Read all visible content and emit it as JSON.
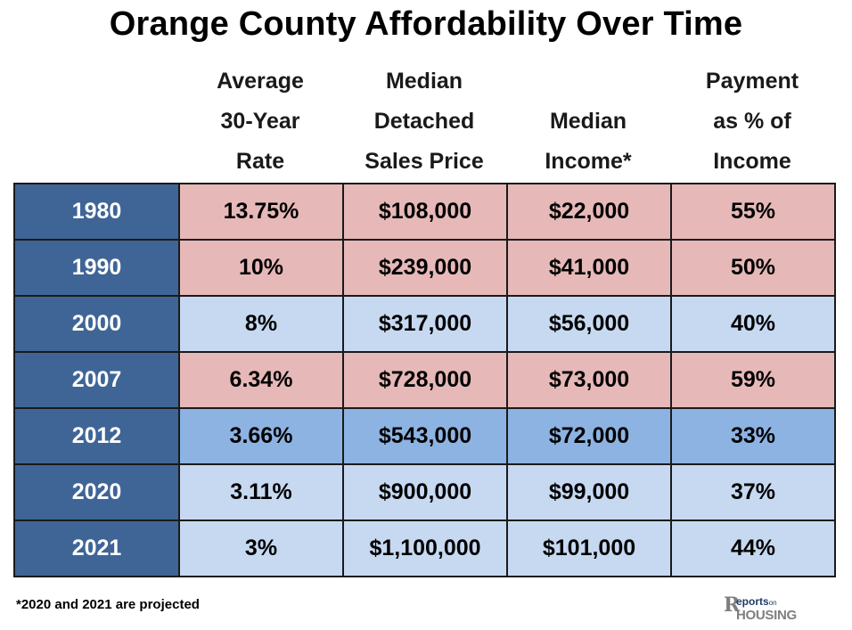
{
  "title": "Orange County Affordability Over Time",
  "headers": {
    "rate": [
      "Average",
      "30-Year",
      "Rate"
    ],
    "price": [
      "Median",
      "Detached",
      "Sales Price"
    ],
    "income": [
      "Median",
      "Income*"
    ],
    "payment": [
      "Payment",
      "as % of",
      "Income"
    ]
  },
  "colors": {
    "year_cell": "#3f6597",
    "pink_row": "#e6b9b8",
    "light_blue_row": "#c6d9f1",
    "mid_blue_row": "#8db3e2"
  },
  "rows": [
    {
      "year": "1980",
      "rate": "13.75%",
      "price": "$108,000",
      "income": "$22,000",
      "payment": "55%",
      "tone": "pink"
    },
    {
      "year": "1990",
      "rate": "10%",
      "price": "$239,000",
      "income": "$41,000",
      "payment": "50%",
      "tone": "pink"
    },
    {
      "year": "2000",
      "rate": "8%",
      "price": "$317,000",
      "income": "$56,000",
      "payment": "40%",
      "tone": "light"
    },
    {
      "year": "2007",
      "rate": "6.34%",
      "price": "$728,000",
      "income": "$73,000",
      "payment": "59%",
      "tone": "pink"
    },
    {
      "year": "2012",
      "rate": "3.66%",
      "price": "$543,000",
      "income": "$72,000",
      "payment": "33%",
      "tone": "mid"
    },
    {
      "year": "2020",
      "rate": "3.11%",
      "price": "$900,000",
      "income": "$99,000",
      "payment": "37%",
      "tone": "light"
    },
    {
      "year": "2021",
      "rate": "3%",
      "price": "$1,100,000",
      "income": "$101,000",
      "payment": "44%",
      "tone": "light"
    }
  ],
  "footnote": "*2020 and 2021 are projected",
  "logo": {
    "mark": "R",
    "top": "eports",
    "on": "on",
    "bottom": "HOUSING",
    "icon": "reports-on-housing-logo"
  }
}
